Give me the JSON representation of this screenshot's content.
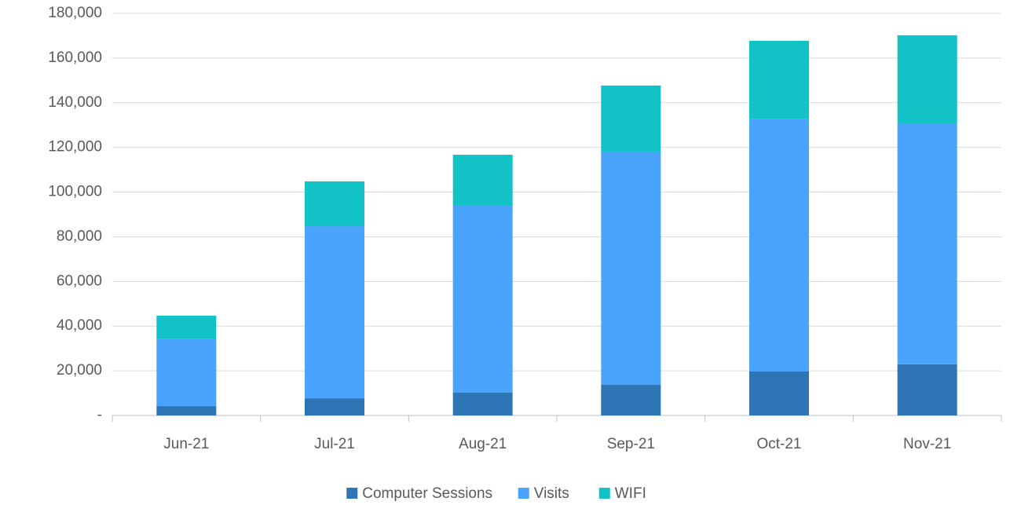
{
  "chart_data": {
    "type": "stacked_bar",
    "categories": [
      "Jun-21",
      "Jul-21",
      "Aug-21",
      "Sep-21",
      "Oct-21",
      "Nov-21"
    ],
    "series": [
      {
        "name": "Computer Sessions",
        "color": "#2e75b6",
        "values": [
          4200,
          7700,
          10200,
          13700,
          19700,
          22900
        ]
      },
      {
        "name": "Visits",
        "color": "#4aa3fc",
        "values": [
          30000,
          77000,
          84000,
          104100,
          112900,
          107900
        ]
      },
      {
        "name": "WIFI",
        "color": "#12c2c6",
        "values": [
          10500,
          20100,
          22500,
          29900,
          35100,
          39400
        ]
      }
    ],
    "ylim": [
      0,
      180000
    ],
    "yticks": [
      {
        "value": 0,
        "label": "-"
      },
      {
        "value": 20000,
        "label": "20,000"
      },
      {
        "value": 40000,
        "label": "40,000"
      },
      {
        "value": 60000,
        "label": "60,000"
      },
      {
        "value": 80000,
        "label": "80,000"
      },
      {
        "value": 100000,
        "label": "100,000"
      },
      {
        "value": 120000,
        "label": "120,000"
      },
      {
        "value": 140000,
        "label": "140,000"
      },
      {
        "value": 160000,
        "label": "160,000"
      },
      {
        "value": 180000,
        "label": "180,000"
      }
    ],
    "grid": true,
    "legend": "bottom"
  }
}
